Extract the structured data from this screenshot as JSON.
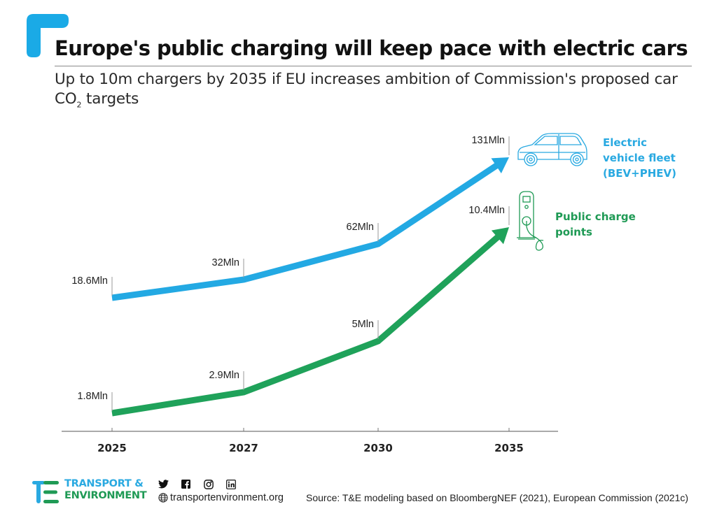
{
  "header": {
    "title": "Europe's public charging will keep pace with electric cars",
    "subtitle_main": "Up to 10m chargers by 2035 if EU increases ambition of Commission's proposed car CO",
    "subtitle_sub": "2",
    "subtitle_end": " targets",
    "accent_color": "#1aaae6"
  },
  "legend": {
    "ev": {
      "lines": [
        "Electric",
        "vehicle fleet",
        "(BEV+PHEV)"
      ],
      "icon": "car-icon"
    },
    "cp": {
      "lines": [
        "Public charge",
        "points"
      ],
      "icon": "charging-station-icon"
    }
  },
  "chart_data": {
    "type": "line",
    "title": "Europe's public charging will keep pace with electric cars",
    "xlabel": "",
    "ylabel": "",
    "categories": [
      "2025",
      "2027",
      "2030",
      "2035"
    ],
    "grid": false,
    "y_axis_shown": false,
    "series": [
      {
        "name": "Electric vehicle fleet (BEV+PHEV)",
        "color": "#23a9e3",
        "values": [
          18.6,
          32,
          62,
          131
        ],
        "labels": [
          "18.6Mln",
          "32Mln",
          "62Mln",
          "131Mln"
        ],
        "arrow_end": true
      },
      {
        "name": "Public charge points",
        "color": "#1fa25a",
        "values": [
          1.8,
          2.9,
          5,
          10.4
        ],
        "labels": [
          "1.8Mln",
          "2.9Mln",
          "5Mln",
          "10.4Mln"
        ],
        "arrow_end": true
      }
    ],
    "note": "Each series is drawn on its own independent vertical scale"
  },
  "footer": {
    "logo_line1": "TRANSPORT &",
    "logo_line2": "ENVIRONMENT",
    "socials": [
      "twitter-icon",
      "facebook-icon",
      "instagram-icon",
      "linkedin-icon"
    ],
    "website": "transportenvironment.org",
    "source": "Source: T&E modeling based on BloombergNEF (2021), European Commission (2021c)"
  }
}
